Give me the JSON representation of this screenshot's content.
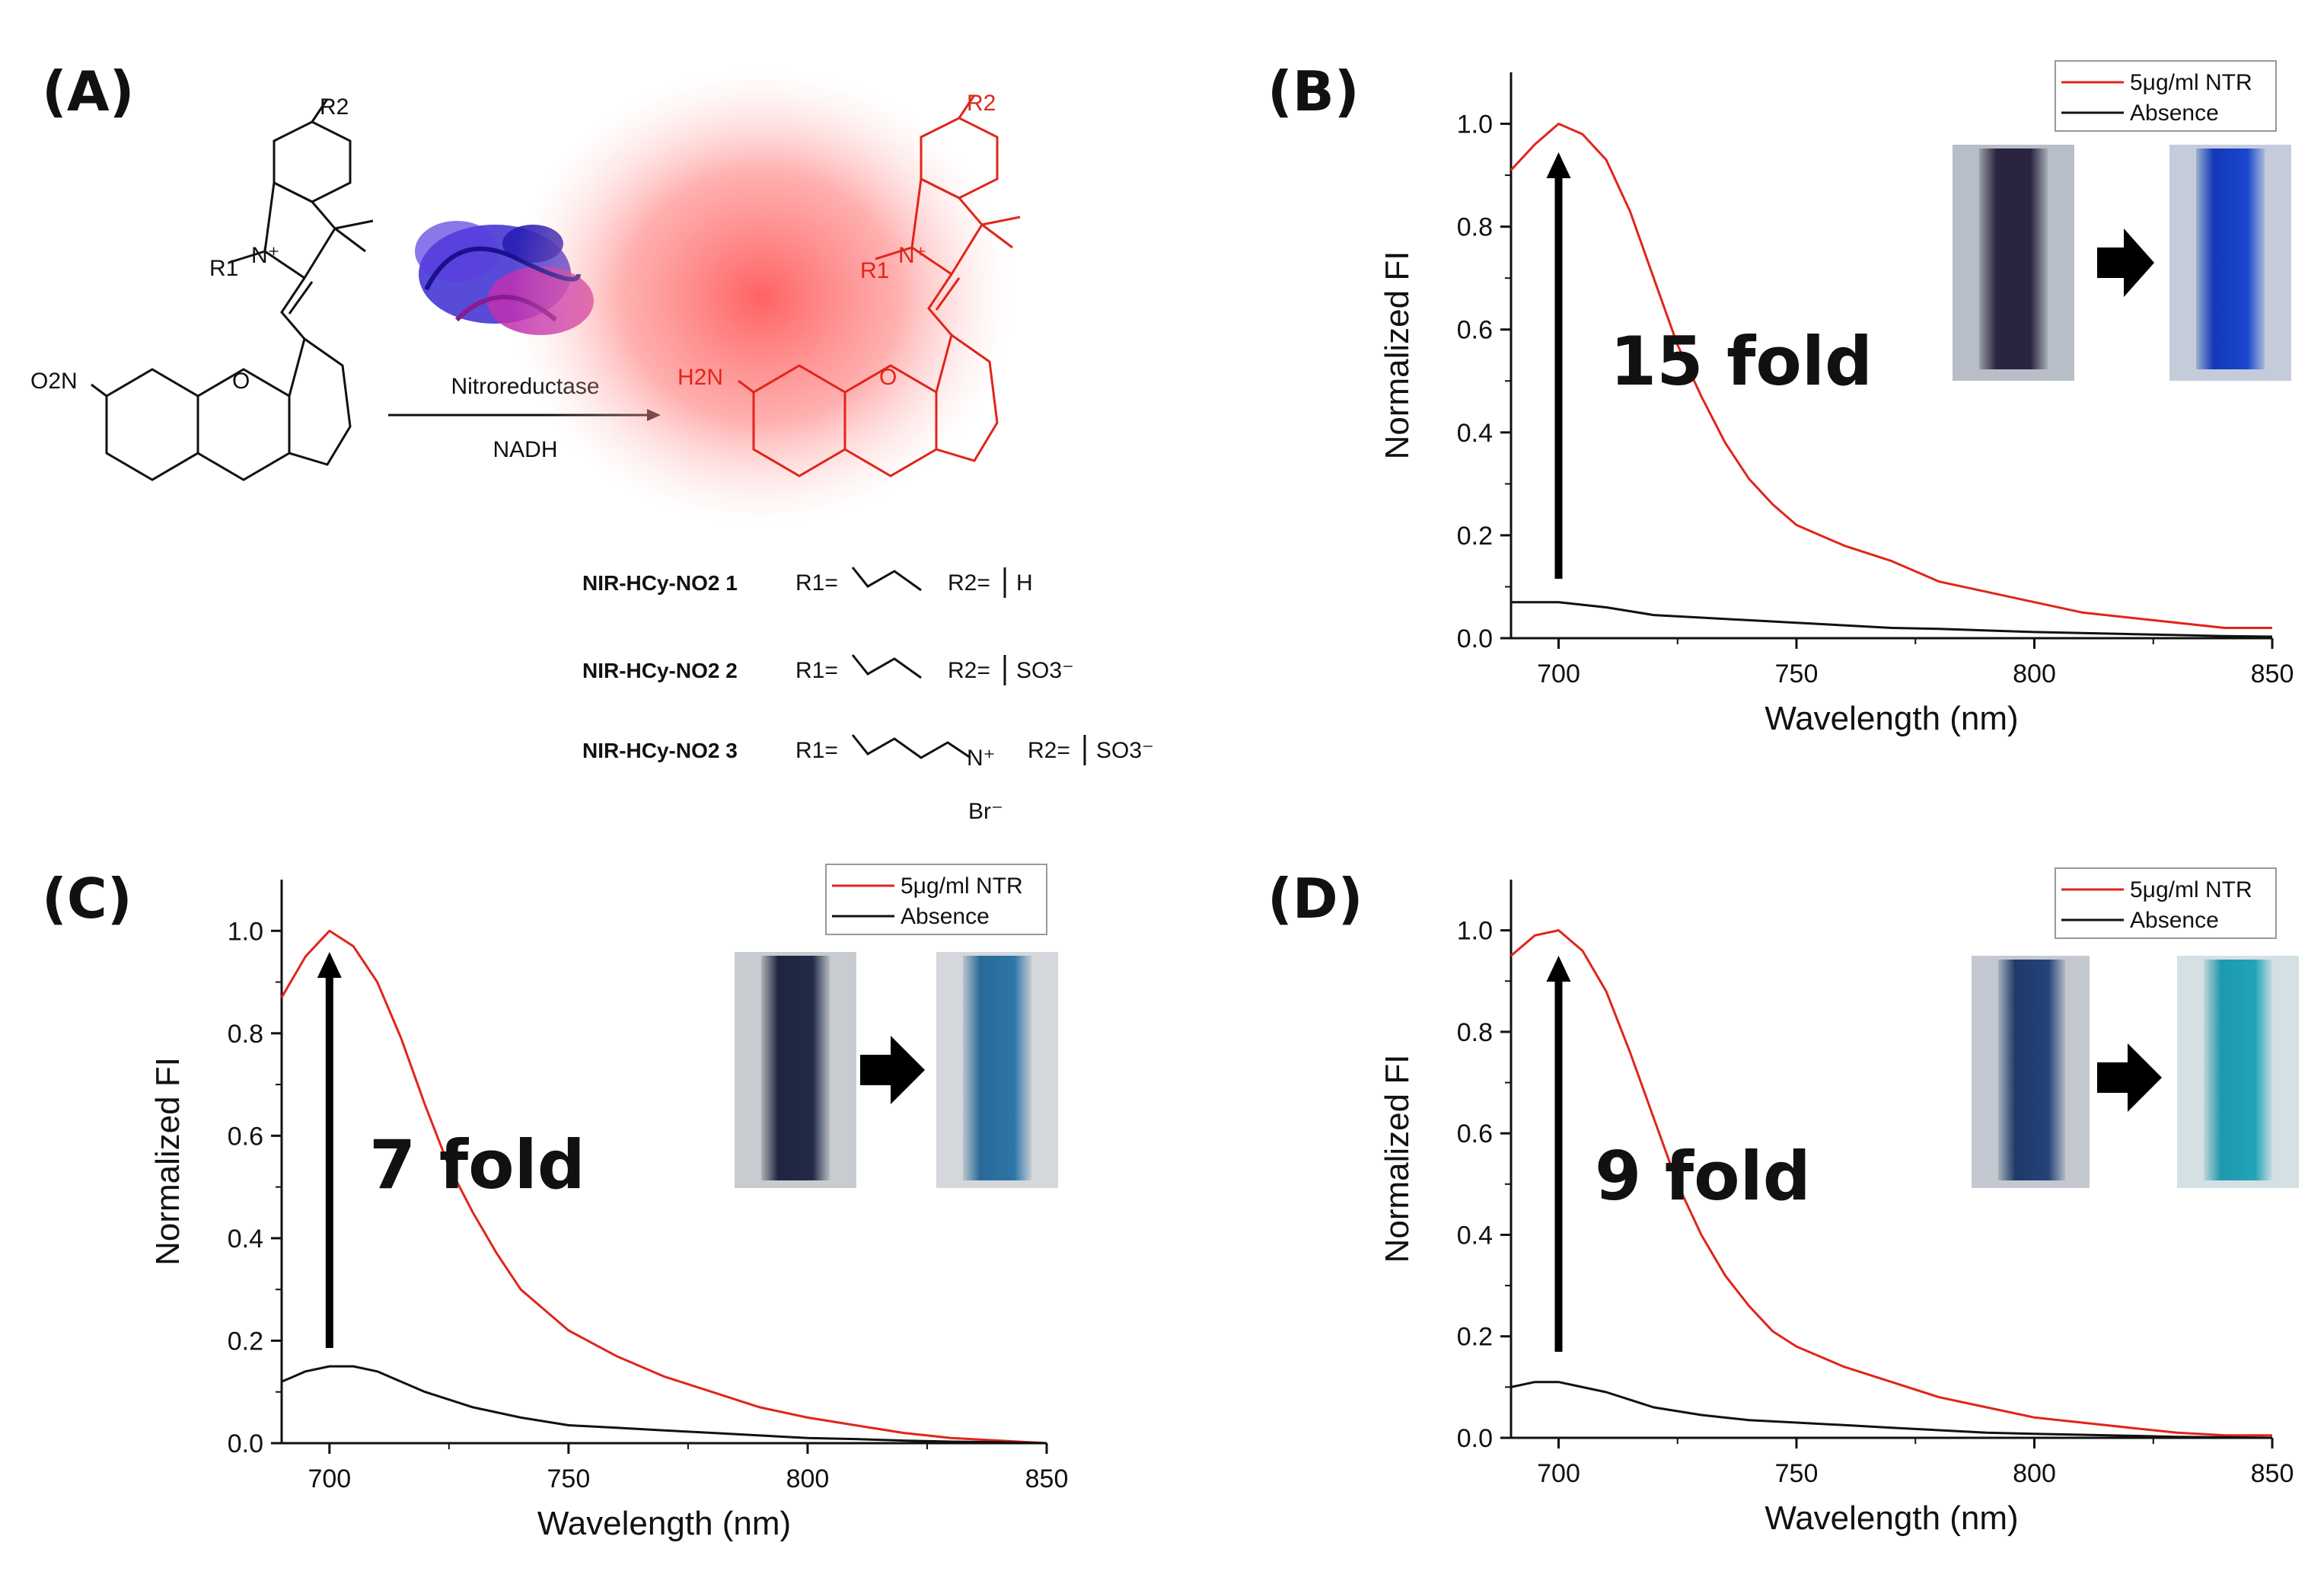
{
  "panels": {
    "A": "(A)",
    "B": "(B)",
    "C": "(C)",
    "D": "(D)"
  },
  "scheme": {
    "enzyme": "Nitroreductase",
    "cofactor": "NADH",
    "reactant_group": "O2N",
    "product_group": "H2N",
    "substituent_1": "R1",
    "substituent_2": "R2",
    "compounds": [
      {
        "name": "NIR-HCy-NO2 1",
        "r1": "R1=",
        "r2": "R2=",
        "r2_group": "H"
      },
      {
        "name": "NIR-HCy-NO2 2",
        "r1": "R1=",
        "r2": "R2=",
        "r2_group": "SO3⁻"
      },
      {
        "name": "NIR-HCy-NO2 3",
        "r1": "R1=",
        "r2": "R2=",
        "r2_group": "SO3⁻",
        "counterion": "Br⁻"
      }
    ]
  },
  "colors": {
    "nitroreductase_curve": "#e0251b",
    "absence_curve": "#111111",
    "product_glow": "#ff6b6b"
  },
  "chart_data": [
    {
      "panel": "B",
      "type": "line",
      "xlabel": "Wavelength (nm)",
      "ylabel": "Normalized FI",
      "xlim": [
        690,
        850
      ],
      "ylim": [
        0,
        1.1
      ],
      "xticks": [
        "700",
        "750",
        "800",
        "850"
      ],
      "yticks": [
        "0.0",
        "0.2",
        "0.4",
        "0.6",
        "0.8",
        "1.0"
      ],
      "annotation": "15 fold",
      "legend": [
        "5μg/ml NTR",
        "Absence"
      ],
      "series": [
        {
          "name": "5μg/ml NTR",
          "x": [
            690,
            695,
            700,
            705,
            710,
            715,
            720,
            725,
            730,
            735,
            740,
            745,
            750,
            760,
            770,
            780,
            790,
            800,
            810,
            820,
            830,
            840,
            850
          ],
          "y": [
            0.91,
            0.96,
            1.0,
            0.98,
            0.93,
            0.83,
            0.7,
            0.57,
            0.47,
            0.38,
            0.31,
            0.26,
            0.22,
            0.18,
            0.15,
            0.11,
            0.09,
            0.07,
            0.05,
            0.04,
            0.03,
            0.02,
            0.02
          ]
        },
        {
          "name": "Absence",
          "x": [
            690,
            700,
            710,
            720,
            730,
            740,
            750,
            760,
            770,
            780,
            790,
            800,
            810,
            820,
            830,
            840,
            850
          ],
          "y": [
            0.07,
            0.07,
            0.06,
            0.045,
            0.04,
            0.035,
            0.03,
            0.025,
            0.02,
            0.018,
            0.015,
            0.012,
            0.01,
            0.008,
            0.006,
            0.004,
            0.003
          ]
        }
      ]
    },
    {
      "panel": "C",
      "type": "line",
      "xlabel": "Wavelength (nm)",
      "ylabel": "Normalized FI",
      "xlim": [
        690,
        850
      ],
      "ylim": [
        0,
        1.1
      ],
      "xticks": [
        "700",
        "750",
        "800",
        "850"
      ],
      "yticks": [
        "0.0",
        "0.2",
        "0.4",
        "0.6",
        "0.8",
        "1.0"
      ],
      "annotation": "7 fold",
      "legend": [
        "5μg/ml NTR",
        "Absence"
      ],
      "series": [
        {
          "name": "5μg/ml NTR",
          "x": [
            690,
            695,
            700,
            705,
            710,
            715,
            720,
            725,
            730,
            735,
            740,
            745,
            750,
            760,
            770,
            780,
            790,
            800,
            810,
            820,
            830,
            840,
            850
          ],
          "y": [
            0.87,
            0.95,
            1.0,
            0.97,
            0.9,
            0.79,
            0.66,
            0.54,
            0.45,
            0.37,
            0.3,
            0.26,
            0.22,
            0.17,
            0.13,
            0.1,
            0.07,
            0.05,
            0.035,
            0.02,
            0.01,
            0.005,
            0.0
          ]
        },
        {
          "name": "Absence",
          "x": [
            690,
            695,
            700,
            705,
            710,
            720,
            730,
            740,
            750,
            760,
            770,
            780,
            790,
            800,
            810,
            820,
            830,
            840,
            850
          ],
          "y": [
            0.12,
            0.14,
            0.15,
            0.15,
            0.14,
            0.1,
            0.07,
            0.05,
            0.035,
            0.03,
            0.025,
            0.02,
            0.015,
            0.01,
            0.008,
            0.005,
            0.003,
            0.002,
            0.0
          ]
        }
      ]
    },
    {
      "panel": "D",
      "type": "line",
      "xlabel": "Wavelength (nm)",
      "ylabel": "Normalized FI",
      "xlim": [
        690,
        850
      ],
      "ylim": [
        0,
        1.1
      ],
      "xticks": [
        "700",
        "750",
        "800",
        "850"
      ],
      "yticks": [
        "0.0",
        "0.2",
        "0.4",
        "0.6",
        "0.8",
        "1.0"
      ],
      "annotation": "9 fold",
      "legend": [
        "5μg/ml NTR",
        "Absence"
      ],
      "series": [
        {
          "name": "5μg/ml NTR",
          "x": [
            690,
            695,
            700,
            705,
            710,
            715,
            720,
            725,
            730,
            735,
            740,
            745,
            750,
            760,
            770,
            780,
            790,
            800,
            810,
            820,
            830,
            840,
            850
          ],
          "y": [
            0.95,
            0.99,
            1.0,
            0.96,
            0.88,
            0.76,
            0.63,
            0.5,
            0.4,
            0.32,
            0.26,
            0.21,
            0.18,
            0.14,
            0.11,
            0.08,
            0.06,
            0.04,
            0.03,
            0.02,
            0.01,
            0.005,
            0.005
          ]
        },
        {
          "name": "Absence",
          "x": [
            690,
            695,
            700,
            705,
            710,
            720,
            730,
            740,
            750,
            760,
            770,
            780,
            790,
            800,
            810,
            820,
            830,
            840,
            850
          ],
          "y": [
            0.1,
            0.11,
            0.11,
            0.1,
            0.09,
            0.06,
            0.045,
            0.035,
            0.03,
            0.025,
            0.02,
            0.015,
            0.01,
            0.008,
            0.006,
            0.004,
            0.002,
            0.001,
            0.0
          ]
        }
      ]
    }
  ]
}
